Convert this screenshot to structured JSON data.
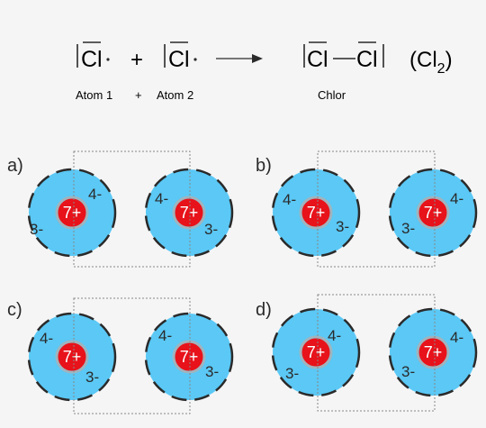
{
  "equation": {
    "atom1": "Cl",
    "plus": "+",
    "atom2": "Cl",
    "product": "Cl",
    "product2": "Cl",
    "formula_main": "(Cl",
    "formula_sub": "2",
    "formula_close": ")",
    "caption_atom1": "Atom 1",
    "caption_plus": "+",
    "caption_atom2": "Atom 2",
    "caption_product": "Chlor"
  },
  "panels": [
    {
      "label": "a)",
      "left": {
        "inner": "4-",
        "outer": "3-",
        "nucleus": "7+"
      },
      "right": {
        "inner": "4-",
        "outer": "3-",
        "nucleus": "7+"
      }
    },
    {
      "label": "b)",
      "left": {
        "inner": "4-",
        "outer": "3-",
        "nucleus": "7+"
      },
      "right": {
        "inner": "4-",
        "outer": "3-",
        "nucleus": "7+"
      }
    },
    {
      "label": "c)",
      "left": {
        "inner": "4-",
        "outer": "3-",
        "nucleus": "7+"
      },
      "right": {
        "inner": "4-",
        "outer": "3-",
        "nucleus": "7+"
      }
    },
    {
      "label": "d)",
      "left": {
        "inner": "4-",
        "outer": "3-",
        "nucleus": "7+"
      },
      "right": {
        "inner": "4-",
        "outer": "3-",
        "nucleus": "7+"
      }
    }
  ],
  "colors": {
    "shell": "#5bc8f5",
    "nucleus": "#e8121a",
    "nucleus_ring": "#a0b4be",
    "box": "#888888"
  }
}
